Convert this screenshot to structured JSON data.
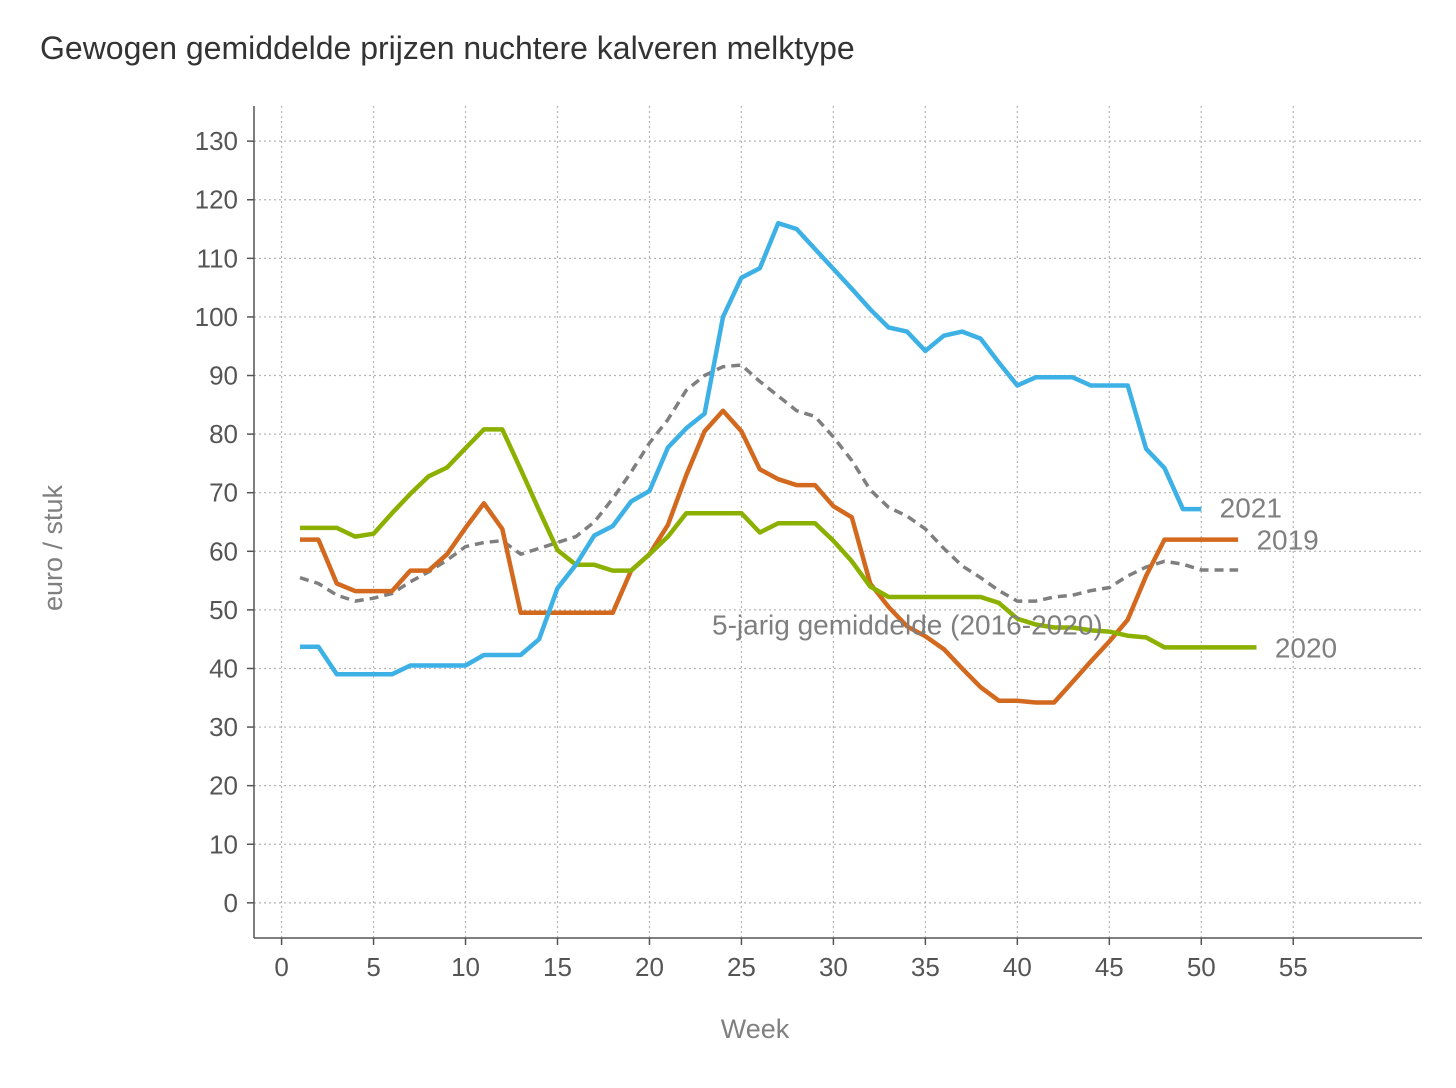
{
  "chart_data": {
    "type": "line",
    "title": "Gewogen gemiddelde prijzen nuchtere kalveren melktype",
    "xlabel": "Week",
    "ylabel": "euro / stuk",
    "xlim": [
      -1.5,
      62
    ],
    "ylim": [
      -6,
      136
    ],
    "xticks": [
      0,
      5,
      10,
      15,
      20,
      25,
      30,
      35,
      40,
      45,
      50,
      55
    ],
    "yticks": [
      0,
      10,
      20,
      30,
      40,
      50,
      60,
      70,
      80,
      90,
      100,
      110,
      120,
      130
    ],
    "grid": true,
    "legend": "none",
    "series": [
      {
        "name": "5-jarig gemiddelde (2016-2020)",
        "color": "#7f7f7f",
        "dashed": true,
        "x": [
          1,
          2,
          3,
          4,
          5,
          6,
          7,
          8,
          9,
          10,
          11,
          12,
          13,
          14,
          15,
          16,
          17,
          18,
          19,
          20,
          21,
          22,
          23,
          24,
          25,
          26,
          27,
          28,
          29,
          30,
          31,
          32,
          33,
          34,
          35,
          36,
          37,
          38,
          39,
          40,
          41,
          42,
          43,
          44,
          45,
          46,
          47,
          48,
          49,
          50,
          51,
          52
        ],
        "values": [
          55.5,
          54.5,
          52.5,
          51.5,
          52,
          52.8,
          54.8,
          56.5,
          58.5,
          60.8,
          61.5,
          61.8,
          59.5,
          60.5,
          61.5,
          62.5,
          65,
          69,
          73.5,
          78.5,
          82.5,
          87.5,
          90,
          91.5,
          91.8,
          89,
          86.5,
          84,
          83,
          79.5,
          75.5,
          70.5,
          67.5,
          66,
          63.8,
          60.5,
          57.5,
          55.5,
          53.3,
          51.5,
          51.5,
          52.2,
          52.5,
          53.3,
          53.8,
          55.8,
          57.3,
          58.3,
          57.8,
          56.8,
          56.8,
          56.8
        ]
      },
      {
        "name": "2019",
        "color": "#d2691e",
        "dashed": false,
        "x": [
          1,
          2,
          3,
          4,
          5,
          6,
          7,
          8,
          9,
          10,
          11,
          12,
          13,
          14,
          15,
          16,
          17,
          18,
          19,
          20,
          21,
          22,
          23,
          24,
          25,
          26,
          27,
          28,
          29,
          30,
          31,
          32,
          33,
          34,
          35,
          36,
          37,
          38,
          39,
          40,
          41,
          42,
          43,
          44,
          45,
          46,
          47,
          48,
          49,
          50,
          51,
          52
        ],
        "values": [
          62,
          62,
          54.5,
          53.2,
          53.2,
          53.2,
          56.7,
          56.7,
          59.5,
          64,
          68.2,
          63.8,
          49.5,
          49.5,
          49.5,
          49.5,
          49.5,
          49.5,
          56.7,
          59.5,
          64.5,
          73,
          80.5,
          84,
          80.5,
          74,
          72.3,
          71.3,
          71.3,
          67.7,
          65.8,
          54.5,
          50.5,
          47.2,
          45.5,
          43.3,
          40,
          36.8,
          34.5,
          34.5,
          34.2,
          34.2,
          37.7,
          41.2,
          44.6,
          48.3,
          55.8,
          62,
          62,
          62,
          62,
          62
        ]
      },
      {
        "name": "2020",
        "color": "#8cb000",
        "dashed": false,
        "x": [
          1,
          2,
          3,
          4,
          5,
          6,
          7,
          8,
          9,
          10,
          11,
          12,
          13,
          14,
          15,
          16,
          17,
          18,
          19,
          20,
          21,
          22,
          23,
          24,
          25,
          26,
          27,
          28,
          29,
          30,
          31,
          32,
          33,
          34,
          35,
          36,
          37,
          38,
          39,
          40,
          41,
          42,
          43,
          44,
          45,
          46,
          47,
          48,
          49,
          50,
          51,
          52,
          53
        ],
        "values": [
          64,
          64,
          64,
          62.5,
          63,
          66.5,
          69.8,
          72.8,
          74.3,
          77.6,
          80.8,
          80.8,
          74,
          67,
          60.2,
          57.7,
          57.7,
          56.7,
          56.7,
          59.5,
          62.5,
          66.5,
          66.5,
          66.5,
          66.5,
          63.2,
          64.8,
          64.8,
          64.8,
          61.8,
          58.3,
          54,
          52.2,
          52.2,
          52.2,
          52.2,
          52.2,
          52.2,
          51.2,
          48.5,
          47.5,
          47,
          47,
          46.5,
          46.3,
          45.6,
          45.3,
          43.6,
          43.6,
          43.6,
          43.6,
          43.6,
          43.6
        ]
      },
      {
        "name": "2021",
        "color": "#3db1e6",
        "dashed": false,
        "x": [
          1,
          2,
          3,
          4,
          5,
          6,
          7,
          8,
          9,
          10,
          11,
          12,
          13,
          14,
          15,
          16,
          17,
          18,
          19,
          20,
          21,
          22,
          23,
          24,
          25,
          26,
          27,
          28,
          29,
          30,
          31,
          32,
          33,
          34,
          35,
          36,
          37,
          38,
          39,
          40,
          41,
          42,
          43,
          44,
          45,
          46,
          47,
          48,
          49,
          50
        ],
        "values": [
          43.7,
          43.7,
          39,
          39,
          39,
          39,
          40.5,
          40.5,
          40.5,
          40.5,
          42.3,
          42.3,
          42.3,
          45,
          53.7,
          57.7,
          62.7,
          64.3,
          68.5,
          70.3,
          77.7,
          81,
          83.5,
          100,
          106.7,
          108.3,
          116,
          115,
          111.6,
          108.2,
          104.8,
          101.3,
          98.2,
          97.5,
          94.2,
          96.8,
          97.5,
          96.3,
          92.2,
          88.3,
          89.7,
          89.7,
          89.7,
          88.3,
          88.3,
          88.3,
          77.5,
          74.2,
          67.2,
          67.2
        ]
      }
    ],
    "series_labels": [
      {
        "text": "2021",
        "color": "#7f7f7f",
        "x": 51,
        "y": 67.5
      },
      {
        "text": "2019",
        "color": "#7f7f7f",
        "x": 53,
        "y": 62
      },
      {
        "text": "2020",
        "color": "#7f7f7f",
        "x": 54,
        "y": 43.6
      },
      {
        "text": "5-jarig gemiddelde (2016-2020)",
        "color": "#7f7f7f",
        "x": 23.4,
        "y": 47.5
      }
    ]
  }
}
